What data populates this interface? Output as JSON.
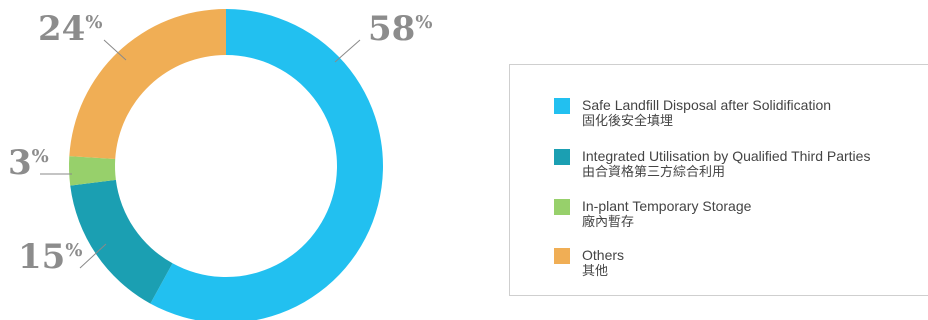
{
  "chart_data": {
    "type": "pie",
    "donut": true,
    "start_angle_deg": 0,
    "direction": "clockwise",
    "slices": [
      {
        "label": "Safe Landfill Disposal after Solidification",
        "label_zh": "固化後安全填埋",
        "value": 58,
        "display": "58",
        "color": "#22c0f0",
        "callout": "upper-right"
      },
      {
        "label": "Integrated Utilisation by Qualified Third Parties",
        "label_zh": "由合資格第三方綜合利用",
        "value": 15,
        "display": "15",
        "color": "#1b9fb2",
        "callout": "lower-left"
      },
      {
        "label": "In-plant Temporary Storage",
        "label_zh": "廠內暫存",
        "value": 3,
        "display": "3",
        "color": "#97d06b",
        "callout": "left"
      },
      {
        "label": "Others",
        "label_zh": "其他",
        "value": 24,
        "display": "24",
        "color": "#f0ae55",
        "callout": "upper-left"
      }
    ],
    "percent_sign": "%",
    "legend_position": "right"
  }
}
